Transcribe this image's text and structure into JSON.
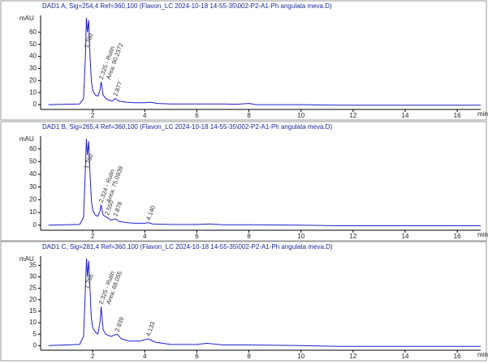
{
  "chart_data": [
    {
      "type": "line",
      "title": "DAD1 A, Sig=254,4 Ref=360,100 (Flavon_LC 2024-10-18 14-55-35\\002-P2-A1-Ph angulata meva.D)",
      "y_label": "mAU",
      "x_label": "min",
      "x": [
        0.3,
        1.5,
        1.65,
        1.72,
        1.76,
        1.8,
        1.85,
        1.9,
        1.95,
        2.0,
        2.1,
        2.2,
        2.28,
        2.325,
        2.4,
        2.5,
        2.6,
        2.75,
        2.877,
        3.0,
        3.3,
        3.6,
        4.0,
        4.2,
        4.5,
        5.0,
        7.0,
        7.5,
        8.0,
        8.3,
        10.0,
        11.5,
        16.9
      ],
      "series": [
        {
          "color": "#1f1fd0",
          "values": [
            0,
            0.5,
            5,
            40,
            72,
            60,
            70,
            40,
            20,
            12,
            8,
            7,
            12,
            19,
            8,
            5,
            4,
            3,
            5,
            3,
            2,
            1.5,
            1.5,
            2,
            1,
            0.5,
            0.5,
            0.3,
            1,
            0,
            0,
            -0.5,
            -0.5
          ]
        }
      ],
      "annotations": [
        {
          "text": "1.760",
          "x": 1.76
        },
        {
          "text": "2.325 - Rutin",
          "x": 2.325
        },
        {
          "text": "Area: 90.2372",
          "x": 2.325
        },
        {
          "text": "2.877",
          "x": 2.877
        }
      ],
      "xlim": [
        0,
        16.9
      ],
      "ylim": [
        -4,
        74
      ],
      "xticks": [
        2,
        4,
        6,
        8,
        10,
        12,
        14,
        16
      ],
      "yticks": [
        0,
        10,
        20,
        30,
        40,
        50,
        60
      ]
    },
    {
      "type": "line",
      "title": "DAD1 B, Sig=265,4 Ref=360,100 (Flavon_LC 2024-10-18 14-55-35\\002-P2-A1-Ph angulata meva.D)",
      "y_label": "mAU",
      "x_label": "min",
      "x": [
        0.3,
        1.5,
        1.65,
        1.72,
        1.76,
        1.8,
        1.85,
        1.9,
        1.95,
        2.0,
        2.1,
        2.2,
        2.28,
        2.324,
        2.4,
        2.55,
        2.7,
        2.878,
        3.0,
        3.3,
        3.6,
        4.0,
        4.14,
        4.3,
        5.0,
        6.0,
        6.5,
        7.0,
        8.0,
        10.0,
        11.5,
        16.9
      ],
      "series": [
        {
          "color": "#1f1fd0",
          "values": [
            0,
            0.5,
            6,
            45,
            68,
            55,
            66,
            40,
            20,
            12,
            8,
            7,
            11,
            16,
            8,
            6,
            4,
            5,
            3,
            2,
            1.5,
            1.5,
            2,
            1,
            0.5,
            0.5,
            1,
            0.3,
            0.3,
            0,
            -0.5,
            -0.5
          ]
        }
      ],
      "annotations": [
        {
          "text": "1.760",
          "x": 1.76
        },
        {
          "text": "2.324 - Rutin",
          "x": 2.324
        },
        {
          "text": "Area: 75.0939",
          "x": 2.324
        },
        {
          "text": "2.550",
          "x": 2.55
        },
        {
          "text": "2.878",
          "x": 2.878
        },
        {
          "text": "4.140",
          "x": 4.14
        }
      ],
      "xlim": [
        0,
        16.9
      ],
      "ylim": [
        -4,
        70
      ],
      "xticks": [
        2,
        4,
        6,
        8,
        10,
        12,
        14,
        16
      ],
      "yticks": [
        0,
        10,
        20,
        30,
        40,
        50,
        60
      ]
    },
    {
      "type": "line",
      "title": "DAD1 C, Sig=281,4 Ref=360,100 (Flavon_LC 2024-10-18 14-55-35\\002-P2-A1-Ph angulata meva.D)",
      "y_label": "mAU",
      "x_label": "min",
      "x": [
        0.3,
        1.5,
        1.65,
        1.72,
        1.765,
        1.8,
        1.85,
        1.9,
        1.95,
        2.0,
        2.1,
        2.2,
        2.28,
        2.325,
        2.4,
        2.5,
        2.7,
        2.939,
        3.1,
        3.4,
        3.8,
        4.133,
        4.4,
        5.0,
        6.0,
        6.4,
        7.0,
        8.0,
        10.0,
        11.5,
        16.9
      ],
      "series": [
        {
          "color": "#1f1fd0",
          "values": [
            0,
            0.5,
            4,
            25,
            38,
            30,
            37,
            24,
            12,
            8,
            6,
            5,
            10,
            17,
            7,
            5,
            4,
            5,
            3,
            2,
            2,
            3,
            1.5,
            0.5,
            0.5,
            1,
            0.3,
            0.3,
            0,
            -0.3,
            -0.3
          ]
        }
      ],
      "annotations": [
        {
          "text": "1.765",
          "x": 1.765
        },
        {
          "text": "2.325 - Rutin",
          "x": 2.325
        },
        {
          "text": "Area: 68.055",
          "x": 2.325
        },
        {
          "text": "2.939",
          "x": 2.939
        },
        {
          "text": "4.133",
          "x": 4.133
        }
      ],
      "xlim": [
        0,
        16.9
      ],
      "ylim": [
        -2,
        39
      ],
      "xticks": [
        2,
        4,
        6,
        8,
        10,
        12,
        14,
        16
      ],
      "yticks": [
        0,
        5,
        10,
        15,
        20,
        25,
        30,
        35
      ]
    }
  ]
}
